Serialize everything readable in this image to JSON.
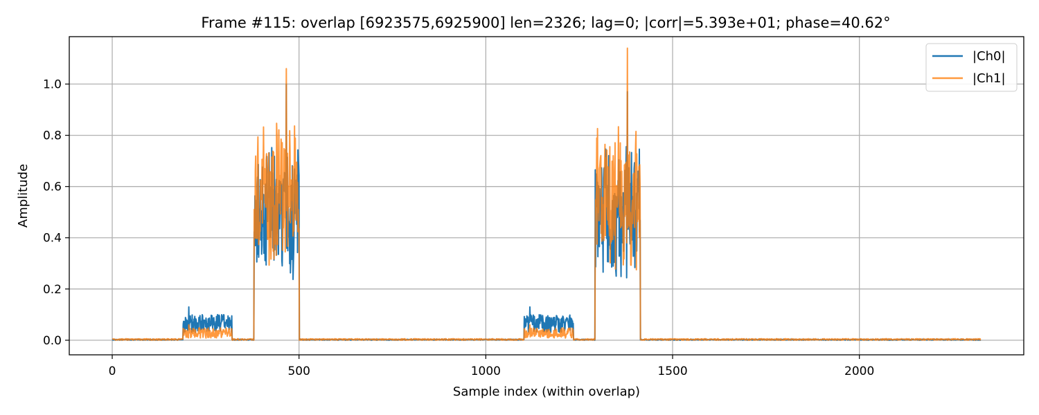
{
  "chart_data": {
    "type": "line",
    "title": "Frame #115: overlap [6923575,6925900]  len=2326; lag=0; |corr|=5.393e+01; phase=40.62°",
    "xlabel": "Sample index (within overlap)",
    "ylabel": "Amplitude",
    "xlim": [
      -115,
      2440
    ],
    "ylim": [
      -0.057,
      1.185
    ],
    "xticks": [
      0,
      500,
      1000,
      1500,
      2000
    ],
    "xtick_labels": [
      "0",
      "500",
      "1000",
      "1500",
      "2000"
    ],
    "yticks": [
      0.0,
      0.2,
      0.4,
      0.6,
      0.8,
      1.0
    ],
    "ytick_labels": [
      "0.0",
      "0.2",
      "0.4",
      "0.6",
      "0.8",
      "1.0"
    ],
    "grid": true,
    "legend_position": "top-right",
    "length": 2326,
    "series": [
      {
        "name": "|Ch0|",
        "color": "#1f77b4",
        "opacity": 1.0,
        "noise_floor": 0.004,
        "segments": [
          {
            "start": 190,
            "end": 320,
            "kind": "preamble",
            "level": 0.065,
            "spread": 0.035,
            "max": 0.13
          },
          {
            "start": 380,
            "end": 500,
            "kind": "burst",
            "level": 0.5,
            "spread": 0.28,
            "max": 1.0
          },
          {
            "start": 1103,
            "end": 1234,
            "kind": "preamble",
            "level": 0.065,
            "spread": 0.035,
            "max": 0.13
          },
          {
            "start": 1293,
            "end": 1413,
            "kind": "burst",
            "level": 0.5,
            "spread": 0.28,
            "max": 0.97
          }
        ]
      },
      {
        "name": "|Ch1|",
        "color": "#ff7f0e",
        "opacity": 0.8,
        "noise_floor": 0.006,
        "segments": [
          {
            "start": 190,
            "end": 320,
            "kind": "preamble",
            "level": 0.028,
            "spread": 0.02,
            "max": 0.06
          },
          {
            "start": 380,
            "end": 500,
            "kind": "burst",
            "level": 0.55,
            "spread": 0.3,
            "max": 1.06
          },
          {
            "start": 1103,
            "end": 1234,
            "kind": "preamble",
            "level": 0.028,
            "spread": 0.02,
            "max": 0.06
          },
          {
            "start": 1293,
            "end": 1413,
            "kind": "burst",
            "level": 0.55,
            "spread": 0.3,
            "max": 1.14
          }
        ]
      }
    ]
  }
}
